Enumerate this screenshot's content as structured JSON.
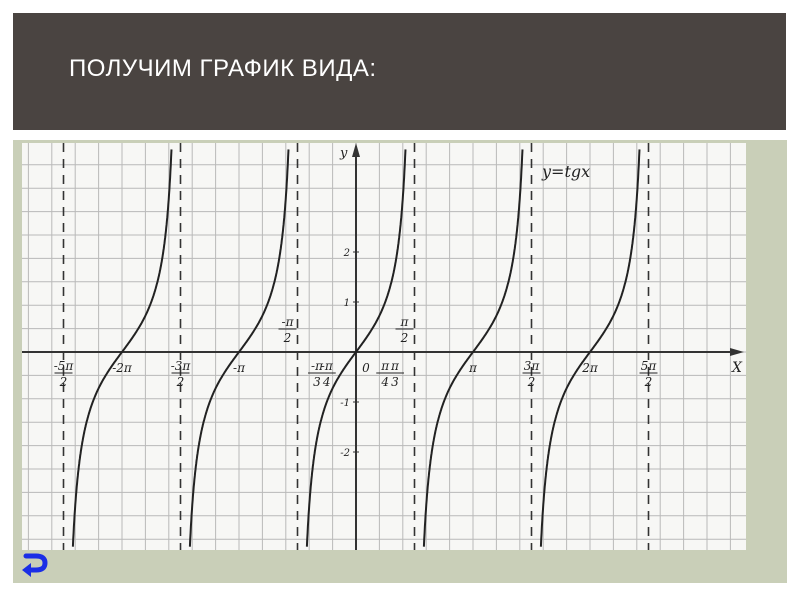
{
  "slide": {
    "title": "ПОЛУЧИМ ГРАФИК ВИДА:"
  },
  "colors": {
    "header": "#4a4441",
    "panel": "#c9cfb8",
    "back_arrow": "#1a2ee6"
  },
  "nav": {
    "back_icon": "return-arrow-icon"
  },
  "chart_data": {
    "type": "line",
    "function": "y = tg x",
    "legend": "y=tgx",
    "xlabel": "X",
    "ylabel": "y",
    "grid": true,
    "xlim_pi": [
      -2.7,
      3.3
    ],
    "ylim": [
      -4,
      4.2
    ],
    "asymptotes_pi": [
      -2.5,
      -1.5,
      -0.5,
      0.5,
      1.5,
      2.5
    ],
    "zeros_pi": [
      -2,
      -1,
      0,
      1,
      2
    ],
    "x_tick_labels": [
      {
        "num": "-5π",
        "den": "2",
        "v": -2.5
      },
      {
        "text": "-2π",
        "v": -2
      },
      {
        "num": "-3π",
        "den": "2",
        "v": -1.5
      },
      {
        "text": "-π",
        "v": -1
      },
      {
        "num": "-π",
        "den": "2",
        "v": -0.5,
        "above": true
      },
      {
        "num": "-π",
        "den": "3",
        "v": -0.3333
      },
      {
        "num": "-π",
        "den": "4",
        "v": -0.25
      },
      {
        "text": "0",
        "v": 0
      },
      {
        "num": "π",
        "den": "4",
        "v": 0.25
      },
      {
        "num": "π",
        "den": "3",
        "v": 0.3333
      },
      {
        "num": "π",
        "den": "2",
        "v": 0.5,
        "above": true
      },
      {
        "text": "π",
        "v": 1
      },
      {
        "num": "3π",
        "den": "2",
        "v": 1.5
      },
      {
        "text": "2π",
        "v": 2
      },
      {
        "num": "5π",
        "den": "2",
        "v": 2.5
      }
    ],
    "y_tick_labels": [
      {
        "text": "2",
        "v": 2
      },
      {
        "text": "1",
        "v": 1
      },
      {
        "text": "-1",
        "v": -1
      },
      {
        "text": "-2",
        "v": -2
      }
    ]
  }
}
